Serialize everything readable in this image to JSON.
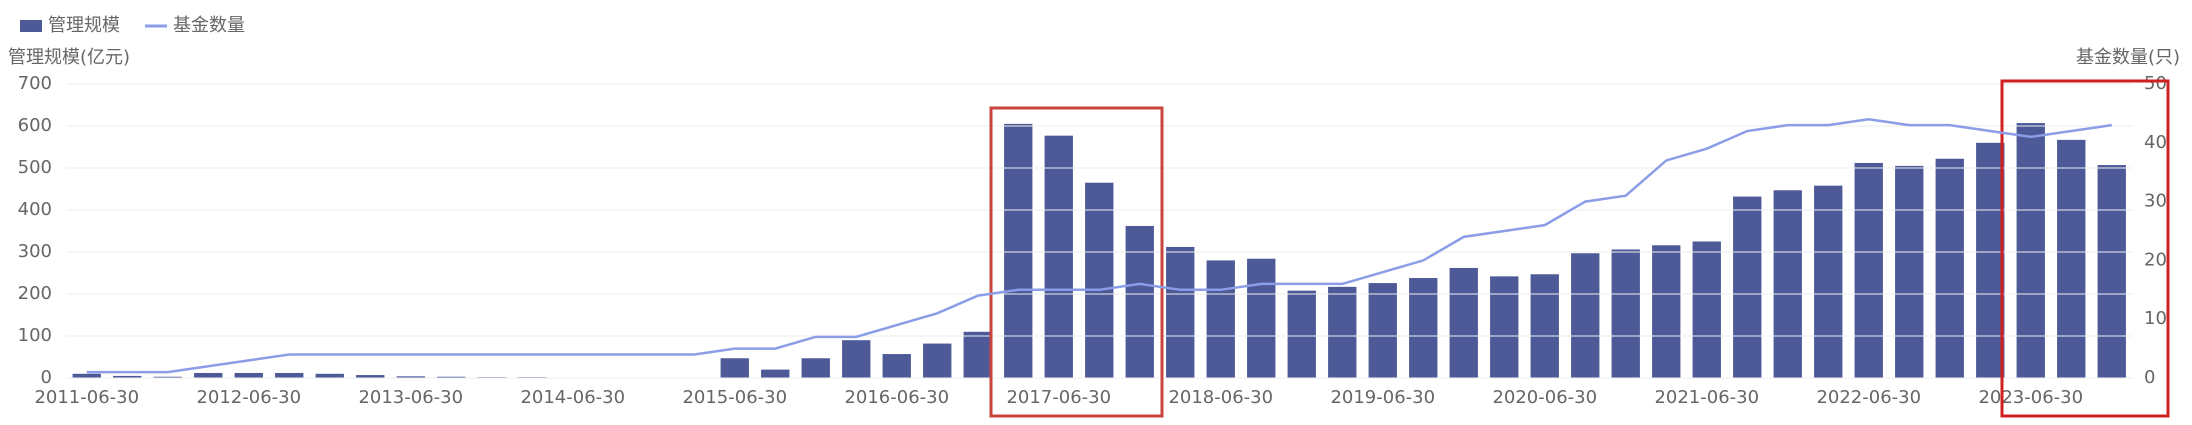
{
  "chart_data": {
    "type": "bar_line",
    "legend": [
      "管理规模",
      "基金数量"
    ],
    "y_label": "管理规模(亿元)",
    "y2_label": "基金数量(只)",
    "categories": [
      "2011-06-30",
      null,
      null,
      null,
      "2012-06-30",
      null,
      null,
      null,
      "2013-06-30",
      null,
      null,
      null,
      "2014-06-30",
      null,
      null,
      null,
      "2015-06-30",
      null,
      null,
      null,
      "2016-06-30",
      null,
      null,
      null,
      "2017-06-30",
      null,
      null,
      null,
      "2018-06-30",
      null,
      null,
      null,
      "2019-06-30",
      null,
      null,
      null,
      "2020-06-30",
      null,
      null,
      null,
      "2021-06-30",
      null,
      null,
      null,
      "2022-06-30",
      null,
      null,
      null,
      "2023-06-30",
      null,
      null
    ],
    "series": [
      {
        "name": "管理规模",
        "color": "#4e5a98",
        "values": [
          10,
          5,
          3,
          12,
          12,
          12,
          10,
          7,
          4,
          3,
          2,
          2,
          1,
          1,
          1,
          1,
          47,
          20,
          47,
          90,
          57,
          82,
          110,
          605,
          577,
          465,
          362,
          312,
          280,
          284,
          208,
          217,
          226,
          238,
          262,
          242,
          247,
          297,
          306,
          316,
          325,
          432,
          447,
          458,
          512,
          505,
          522,
          560,
          607,
          567,
          507
        ]
      },
      {
        "name": "基金数量",
        "color": "#8a9de6",
        "axis": "y2",
        "values": [
          1,
          1,
          1,
          2,
          3,
          4,
          4,
          4,
          4,
          4,
          4,
          4,
          4,
          4,
          4,
          4,
          5,
          5,
          7,
          7,
          9,
          11,
          14,
          15,
          15,
          15,
          16,
          15,
          15,
          16,
          16,
          16,
          18,
          20,
          24,
          25,
          26,
          30,
          31,
          37,
          39,
          42,
          43,
          43,
          44,
          43,
          43,
          42,
          41,
          42,
          43
        ]
      }
    ],
    "ylim": [
      0,
      700
    ],
    "yticks": [
      0,
      100,
      200,
      300,
      400,
      500,
      600,
      700
    ],
    "y2lim": [
      0,
      50
    ],
    "y2ticks": [
      0,
      10,
      20,
      30,
      40,
      50
    ],
    "grid": true
  }
}
